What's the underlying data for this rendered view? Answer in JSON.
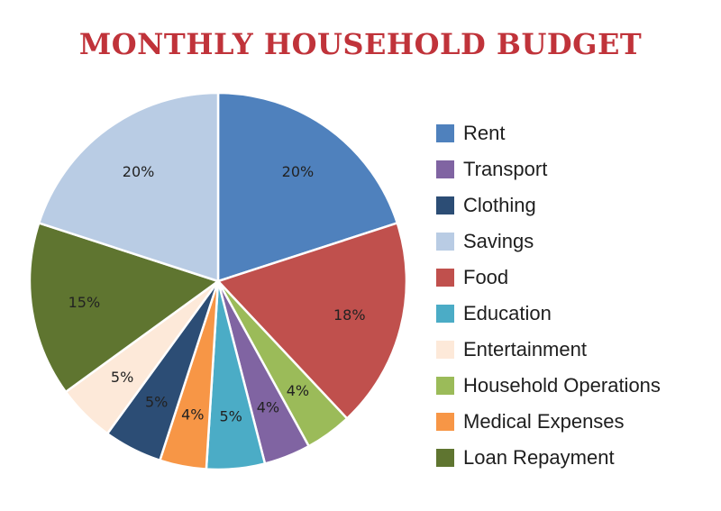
{
  "title": "MONTHLY HOUSEHOLD BUDGET",
  "chart_data": {
    "type": "pie",
    "title": "MONTHLY HOUSEHOLD BUDGET",
    "unit": "%",
    "legend_position": "right",
    "slices": [
      {
        "name": "Rent",
        "value": 20,
        "label": "20%",
        "color": "#4f81bd"
      },
      {
        "name": "Food",
        "value": 18,
        "label": "18%",
        "color": "#c0504d"
      },
      {
        "name": "Household Operations",
        "value": 4,
        "label": "4%",
        "color": "#9bbb59"
      },
      {
        "name": "Transport",
        "value": 4,
        "label": "4%",
        "color": "#8064a2"
      },
      {
        "name": "Education",
        "value": 5,
        "label": "5%",
        "color": "#4bacc6"
      },
      {
        "name": "Medical Expenses",
        "value": 4,
        "label": "4%",
        "color": "#f79646"
      },
      {
        "name": "Clothing",
        "value": 5,
        "label": "5%",
        "color": "#2c4d75"
      },
      {
        "name": "Entertainment",
        "value": 5,
        "label": "5%",
        "color": "#fde9d9"
      },
      {
        "name": "Loan Repayment",
        "value": 15,
        "label": "15%",
        "color": "#5f7530"
      },
      {
        "name": "Savings",
        "value": 20,
        "label": "20%",
        "color": "#b9cce4"
      }
    ],
    "legend": [
      {
        "name": "Rent",
        "color": "#4f81bd"
      },
      {
        "name": "Transport",
        "color": "#8064a2"
      },
      {
        "name": "Clothing",
        "color": "#2c4d75"
      },
      {
        "name": "Savings",
        "color": "#b9cce4"
      },
      {
        "name": "Food",
        "color": "#c0504d"
      },
      {
        "name": "Education",
        "color": "#4bacc6"
      },
      {
        "name": "Entertainment",
        "color": "#fde9d9"
      },
      {
        "name": "Household Operations",
        "color": "#9bbb59"
      },
      {
        "name": "Medical Expenses",
        "color": "#f79646"
      },
      {
        "name": "Loan Repayment",
        "color": "#5f7530"
      }
    ]
  }
}
